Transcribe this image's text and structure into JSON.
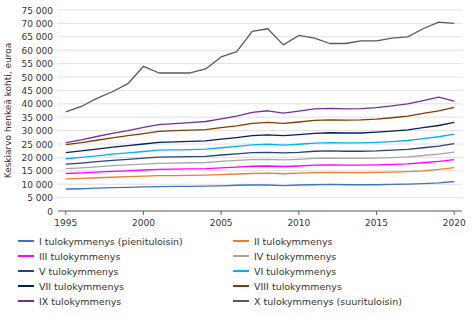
{
  "chart_data": {
    "type": "line",
    "ylabel": "Keskiarvo henkeä kohti, euroa",
    "x": [
      1995,
      1996,
      1997,
      1998,
      1999,
      2000,
      2001,
      2002,
      2003,
      2004,
      2005,
      2006,
      2007,
      2008,
      2009,
      2010,
      2011,
      2012,
      2013,
      2014,
      2015,
      2016,
      2017,
      2018,
      2019,
      2020
    ],
    "series": [
      {
        "name": "I tulokymmenys (pienituloisin)",
        "color": "#4472C4",
        "values": [
          8200,
          8300,
          8500,
          8700,
          8800,
          9000,
          9100,
          9200,
          9200,
          9300,
          9400,
          9600,
          9700,
          9700,
          9500,
          9700,
          9800,
          9900,
          9800,
          9800,
          9800,
          9900,
          10000,
          10200,
          10500,
          11000
        ]
      },
      {
        "name": "II tulokymmenys",
        "color": "#ED7D31",
        "values": [
          12000,
          12200,
          12400,
          12600,
          12800,
          13000,
          13200,
          13200,
          13300,
          13400,
          13600,
          13800,
          14000,
          14100,
          13900,
          14100,
          14300,
          14400,
          14300,
          14300,
          14400,
          14500,
          14700,
          15000,
          15500,
          16200
        ]
      },
      {
        "name": "III tulokymmenys",
        "color": "#FF00FF",
        "values": [
          14000,
          14200,
          14500,
          14800,
          15000,
          15300,
          15500,
          15600,
          15700,
          15800,
          16100,
          16400,
          16700,
          16800,
          16600,
          16800,
          17100,
          17200,
          17100,
          17100,
          17200,
          17400,
          17600,
          18000,
          18500,
          19200
        ]
      },
      {
        "name": "IV tulokymmenys",
        "color": "#A6A6A6",
        "values": [
          15800,
          16100,
          16500,
          16900,
          17200,
          17500,
          17800,
          17900,
          18000,
          18100,
          18500,
          18900,
          19200,
          19300,
          19100,
          19300,
          19600,
          19700,
          19600,
          19600,
          19700,
          19900,
          20200,
          20700,
          21200,
          22000
        ]
      },
      {
        "name": "V tulokymmenys",
        "color": "#264478",
        "values": [
          17500,
          17900,
          18400,
          18900,
          19300,
          19700,
          20100,
          20200,
          20300,
          20400,
          20900,
          21300,
          21800,
          21900,
          21700,
          21900,
          22300,
          22400,
          22300,
          22300,
          22400,
          22700,
          23000,
          23600,
          24200,
          25100
        ]
      },
      {
        "name": "VI tulokymmenys",
        "color": "#00B0F0",
        "values": [
          19500,
          20000,
          20600,
          21200,
          21700,
          22200,
          22700,
          22800,
          22900,
          23100,
          23600,
          24100,
          24700,
          24900,
          24600,
          24900,
          25300,
          25500,
          25400,
          25400,
          25600,
          25900,
          26300,
          27000,
          27700,
          28700
        ]
      },
      {
        "name": "VII tulokymmenys",
        "color": "#002060",
        "values": [
          21800,
          22400,
          23100,
          23800,
          24400,
          25000,
          25600,
          25800,
          26000,
          26200,
          26800,
          27400,
          28100,
          28400,
          28100,
          28500,
          29000,
          29200,
          29100,
          29100,
          29400,
          29800,
          30300,
          31100,
          31900,
          33100
        ]
      },
      {
        "name": "VIII tulokymmenys",
        "color": "#833C00",
        "values": [
          24800,
          25500,
          26400,
          27300,
          28100,
          28900,
          29700,
          30000,
          30200,
          30400,
          31100,
          31800,
          32700,
          33100,
          32700,
          33200,
          33800,
          34000,
          33900,
          34000,
          34300,
          34800,
          35400,
          36400,
          37400,
          38700
        ]
      },
      {
        "name": "IX tulokymmenys",
        "color": "#7030A0",
        "values": [
          25500,
          26500,
          27800,
          29000,
          30000,
          31200,
          32200,
          32600,
          33000,
          33400,
          34400,
          35400,
          36800,
          37400,
          36500,
          37300,
          38100,
          38300,
          38100,
          38200,
          38600,
          39200,
          40000,
          41200,
          42500,
          41000
        ]
      },
      {
        "name": "X tulokymmenys (suurituloisin)",
        "color": "#595959",
        "values": [
          37000,
          39000,
          42000,
          44500,
          47500,
          54000,
          51500,
          51500,
          51500,
          53000,
          57500,
          59500,
          67000,
          68000,
          62000,
          65500,
          64500,
          62500,
          62500,
          63500,
          63500,
          64500,
          65000,
          68000,
          70500,
          70000
        ]
      }
    ],
    "xlim": [
      1994.5,
      2020.5
    ],
    "xticks": [
      1995,
      2000,
      2005,
      2010,
      2015,
      2020
    ],
    "ylim": [
      0,
      75000
    ],
    "yticks": [
      0,
      {
        "value": 5000,
        "label": "5 000"
      },
      {
        "value": 10000,
        "label": "10 000"
      },
      {
        "value": 15000,
        "label": "15 000"
      },
      {
        "value": 20000,
        "label": "20 000"
      },
      {
        "value": 25000,
        "label": "25 000"
      },
      {
        "value": 30000,
        "label": "30 000"
      },
      {
        "value": 35000,
        "label": "35 000"
      },
      {
        "value": 40000,
        "label": "40 000"
      },
      {
        "value": 45000,
        "label": "45 000"
      },
      {
        "value": 50000,
        "label": "50 000"
      },
      {
        "value": 55000,
        "label": "55 000"
      },
      {
        "value": 60000,
        "label": "60 000"
      },
      {
        "value": 65000,
        "label": "65 000"
      },
      {
        "value": 70000,
        "label": "70 000"
      },
      {
        "value": 75000,
        "label": "75 000"
      }
    ],
    "grid": true,
    "legend": "bottom"
  }
}
